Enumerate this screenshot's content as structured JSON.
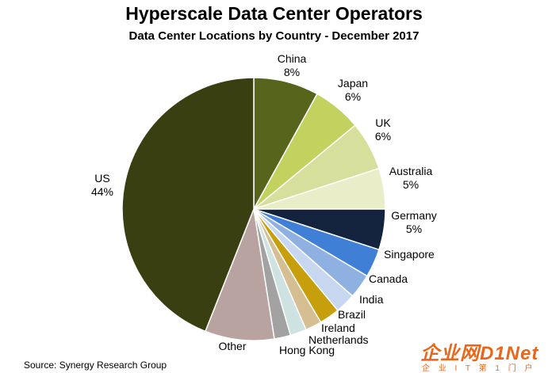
{
  "chart_data": {
    "type": "pie",
    "title": "Hyperscale Data Center Operators",
    "subtitle": "Data Center Locations by Country - December 2017",
    "slices": [
      {
        "label": "China",
        "value_label": "8%",
        "value": 8,
        "color": "#57641c"
      },
      {
        "label": "Japan",
        "value_label": "6%",
        "value": 6,
        "color": "#c3d15f"
      },
      {
        "label": "UK",
        "value_label": "6%",
        "value": 6,
        "color": "#d6df9b"
      },
      {
        "label": "Australia",
        "value_label": "5%",
        "value": 5,
        "color": "#e9eec9"
      },
      {
        "label": "Germany",
        "value_label": "5%",
        "value": 5,
        "color": "#13223d"
      },
      {
        "label": "Singapore",
        "value_label": "",
        "value": 3.5,
        "color": "#3f7fd6"
      },
      {
        "label": "Canada",
        "value_label": "",
        "value": 3,
        "color": "#8fb1e1"
      },
      {
        "label": "India",
        "value_label": "",
        "value": 2.5,
        "color": "#c6d7ef"
      },
      {
        "label": "Brazil",
        "value_label": "",
        "value": 2.5,
        "color": "#c79e0c"
      },
      {
        "label": "Ireland",
        "value_label": "",
        "value": 2,
        "color": "#d6be93"
      },
      {
        "label": "Netherlands",
        "value_label": "",
        "value": 2,
        "color": "#cfe2e2"
      },
      {
        "label": "Hong Kong",
        "value_label": "",
        "value": 2,
        "color": "#a2a2a2"
      },
      {
        "label": "Other",
        "value_label": "",
        "value": 8.5,
        "color": "#b9a3a0"
      },
      {
        "label": "US",
        "value_label": "44%",
        "value": 44,
        "color": "#3a3f12"
      }
    ]
  },
  "source": "Source: Synergy Research Group",
  "watermark": {
    "main": "企业网D1Net",
    "sub": "企 业 I T 第 1 门 户"
  }
}
